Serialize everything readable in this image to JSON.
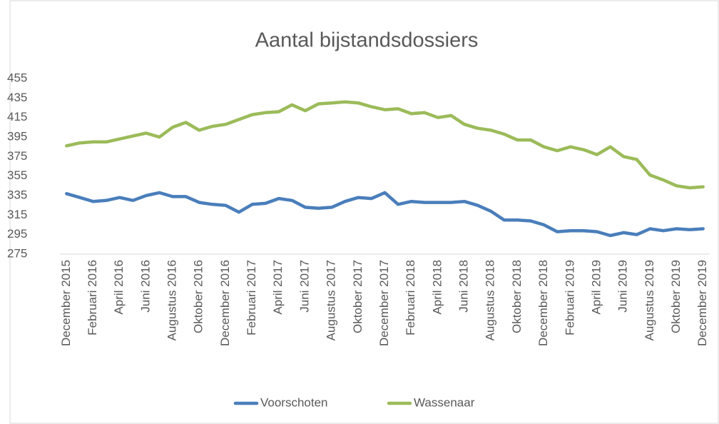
{
  "chart_data": {
    "type": "line",
    "title": "Aantal bijstandsdossiers",
    "categories": [
      "December 2015",
      null,
      "Februari 2016",
      null,
      "April 2016",
      null,
      "Juni 2016",
      null,
      "Augustus 2016",
      null,
      "Oktober 2016",
      null,
      "December 2016",
      null,
      "Februari 2017",
      null,
      "April 2017",
      null,
      "Juni 2017",
      null,
      "Augustus 2017",
      null,
      "Oktober 2017",
      null,
      "December 2017",
      null,
      "Februari 2018",
      null,
      "April 2018",
      null,
      "Juni 2018",
      null,
      "Augustus 2018",
      null,
      "Oktober 2018",
      null,
      "December 2018",
      null,
      "Februari 2019",
      null,
      "April 2019",
      null,
      "Juni 2019",
      null,
      "Augustus 2019",
      null,
      "Oktober 2019",
      null,
      "December 2019"
    ],
    "series": [
      {
        "name": "Voorschoten",
        "color": "#4a7ebb",
        "values": [
          337,
          333,
          329,
          330,
          333,
          330,
          335,
          338,
          334,
          334,
          328,
          326,
          325,
          318,
          326,
          327,
          332,
          330,
          323,
          322,
          323,
          329,
          333,
          332,
          338,
          326,
          329,
          328,
          328,
          328,
          329,
          325,
          319,
          310,
          310,
          309,
          305,
          298,
          299,
          299,
          298,
          294,
          297,
          295,
          301,
          299,
          301,
          300,
          301
        ]
      },
      {
        "name": "Wassenaar",
        "color": "#9bbb59",
        "values": [
          386,
          389,
          390,
          390,
          393,
          396,
          399,
          395,
          405,
          410,
          402,
          406,
          408,
          413,
          418,
          420,
          421,
          428,
          422,
          429,
          430,
          431,
          430,
          426,
          423,
          424,
          419,
          420,
          415,
          417,
          408,
          404,
          402,
          398,
          392,
          392,
          385,
          381,
          385,
          382,
          377,
          385,
          375,
          372,
          356,
          351,
          345,
          343,
          344
        ]
      }
    ],
    "ylim": [
      275,
      455
    ],
    "yticks": [
      275,
      295,
      315,
      335,
      355,
      375,
      395,
      415,
      435,
      455
    ],
    "legend": "bottom"
  }
}
